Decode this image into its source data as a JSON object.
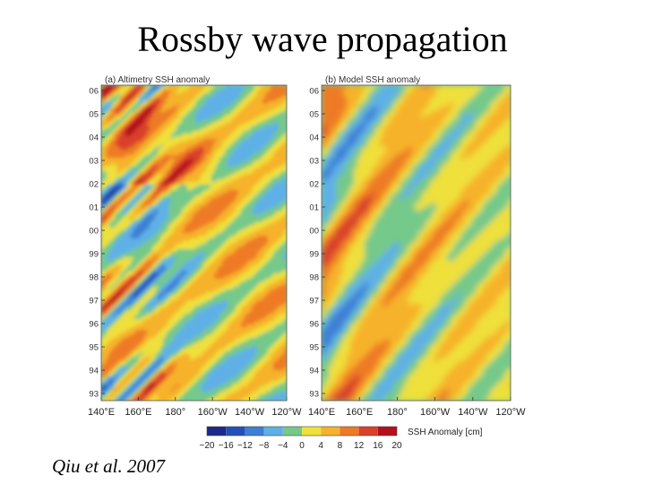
{
  "slide": {
    "title": "Rossby wave propagation",
    "citation": "Qiu et al. 2007"
  },
  "colors": {
    "scale": [
      "#1b2a8a",
      "#2350b8",
      "#3d7fd6",
      "#5fb0e6",
      "#74c98a",
      "#efe03a",
      "#f6b22c",
      "#ee7a25",
      "#d9412a",
      "#b4101c"
    ]
  },
  "chart_data": {
    "type": "heatmap",
    "panels": [
      {
        "title": "(a) Altimetry SSH anomaly",
        "x_ticks": [
          "140°E",
          "160°E",
          "180°",
          "160°W",
          "140°W",
          "120°W"
        ],
        "y_ticks": [
          "06",
          "05",
          "04",
          "03",
          "02",
          "01",
          "00",
          "99",
          "98",
          "97",
          "96",
          "95",
          "94",
          "93"
        ],
        "grid": false
      },
      {
        "title": "(b) Model SSH anomaly",
        "x_ticks": [
          "140°E",
          "160°E",
          "180°",
          "160°W",
          "140°W",
          "120°W"
        ],
        "y_ticks": [
          "06",
          "05",
          "04",
          "03",
          "02",
          "01",
          "00",
          "99",
          "98",
          "97",
          "96",
          "95",
          "94",
          "93"
        ],
        "grid": false
      }
    ],
    "colorbar": {
      "label": "SSH Anomaly [cm]",
      "ticks": [
        "−20",
        "−16",
        "−12",
        "−8",
        "−4",
        "0",
        "4",
        "8",
        "12",
        "16",
        "20"
      ],
      "range": [
        -20,
        20
      ]
    }
  }
}
